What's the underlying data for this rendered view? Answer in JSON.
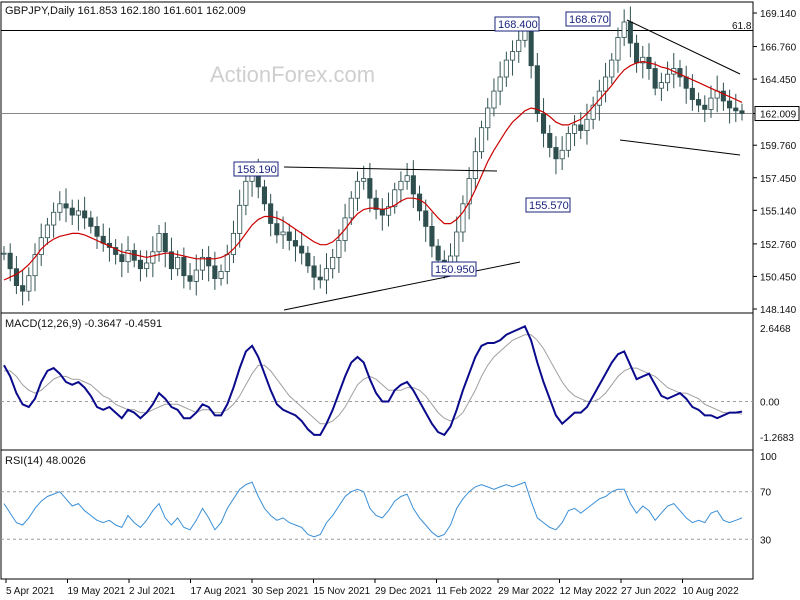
{
  "header": {
    "symbol_line": "GBPJPY,Daily  161.853 162.180 161.601 162.009",
    "macd_label": "MACD(12,26,9) -0.3647 -0.4591",
    "rsi_label": "RSI(14) 48.0026"
  },
  "watermark": "ActionForex.com",
  "colors": {
    "candle": "#2f4f4f",
    "ma": "#cc0000",
    "macd_line": "#0a0a8c",
    "signal": "#a0a0a0",
    "rsi": "#3a8fd6",
    "trendline": "#000000",
    "grid": "#9e9e9e",
    "label_border": "#1a237e"
  },
  "chart_data": [
    {
      "type": "line",
      "title": "GBPJPY,Daily",
      "ohlc_current": {
        "open": 161.853,
        "high": 162.18,
        "low": 161.601,
        "close": 162.009
      },
      "y_ticks": [
        "169.140",
        "166.760",
        "164.450",
        "162.009",
        "159.760",
        "157.450",
        "155.140",
        "152.760",
        "150.450",
        "148.140"
      ],
      "ylim": [
        148.14,
        169.14
      ],
      "x_ticks": [
        "5 Apr 2021",
        "19 May 2021",
        "2 Jul 2021",
        "17 Aug 2021",
        "30 Sep 2021",
        "15 Nov 2021",
        "29 Dec 2021",
        "11 Feb 2022",
        "29 Mar 2022",
        "12 May 2022",
        "27 Jun 2022",
        "10 Aug 2022"
      ],
      "annotations": [
        {
          "text": "168.400",
          "x": "Mar 2022",
          "y": 168.4
        },
        {
          "text": "168.670",
          "x": "May 2022",
          "y": 168.67
        },
        {
          "text": "158.190",
          "x": "Oct 2021",
          "y": 158.19
        },
        {
          "text": "155.570",
          "x": "May 2022",
          "y": 155.57
        },
        {
          "text": "150.950",
          "x": "Feb 2022",
          "y": 150.95
        },
        {
          "text": "61.8",
          "x": "Aug 2022",
          "y": 167.9
        }
      ],
      "horizontal_lines": [
        {
          "y": 167.9,
          "label": "61.8"
        },
        {
          "y": 162.009,
          "label": "162.009"
        }
      ],
      "series": [
        {
          "name": "close",
          "values": [
            152.1,
            151.0,
            149.8,
            149.4,
            150.5,
            152.0,
            153.2,
            154.1,
            155.0,
            155.6,
            155.3,
            154.8,
            155.1,
            154.6,
            154.0,
            153.3,
            152.8,
            152.5,
            152.0,
            151.5,
            152.3,
            151.6,
            151.0,
            151.4,
            152.2,
            153.5,
            152.2,
            151.0,
            151.8,
            150.5,
            150.1,
            150.9,
            151.8,
            151.2,
            150.3,
            150.8,
            152.0,
            153.5,
            155.5,
            157.2,
            157.8,
            156.8,
            155.6,
            154.2,
            153.4,
            153.6,
            153.0,
            152.6,
            152.1,
            151.2,
            150.4,
            150.2,
            151.0,
            151.8,
            153.0,
            154.6,
            156.0,
            157.2,
            157.4,
            156.0,
            155.2,
            154.8,
            155.4,
            156.6,
            157.2,
            157.6,
            156.3,
            155.1,
            154.0,
            152.6,
            151.6,
            151.2,
            151.9,
            153.6,
            155.6,
            157.4,
            159.3,
            161.0,
            162.4,
            163.6,
            164.6,
            165.8,
            166.4,
            167.2,
            168.2,
            165.4,
            162.0,
            160.6,
            159.6,
            158.8,
            159.4,
            160.6,
            161.2,
            160.8,
            161.6,
            162.6,
            163.6,
            164.6,
            165.8,
            167.4,
            168.5,
            167.0,
            165.6,
            166.0,
            165.2,
            163.8,
            164.2,
            164.8,
            165.2,
            164.6,
            163.8,
            163.0,
            162.6,
            162.3,
            163.1,
            163.6,
            162.9,
            162.4,
            162.2,
            162.009
          ]
        },
        {
          "name": "ma",
          "values": [
            150.2,
            150.4,
            150.6,
            150.9,
            151.3,
            151.8,
            152.4,
            152.8,
            153.1,
            153.3,
            153.4,
            153.5,
            153.5,
            153.4,
            153.2,
            153.0,
            152.8,
            152.6,
            152.4,
            152.2,
            152.1,
            152.0,
            151.9,
            151.8,
            151.9,
            152.0,
            152.1,
            152.1,
            152.0,
            151.9,
            151.8,
            151.7,
            151.7,
            151.7,
            151.7,
            151.8,
            152.0,
            152.4,
            152.9,
            153.5,
            154.1,
            154.5,
            154.7,
            154.7,
            154.6,
            154.4,
            154.1,
            153.8,
            153.5,
            153.2,
            152.9,
            152.7,
            152.7,
            152.9,
            153.3,
            153.8,
            154.4,
            154.9,
            155.2,
            155.3,
            155.3,
            155.2,
            155.3,
            155.5,
            155.8,
            156.0,
            156.0,
            155.9,
            155.6,
            155.1,
            154.6,
            154.2,
            154.2,
            154.5,
            155.0,
            155.7,
            156.6,
            157.6,
            158.6,
            159.4,
            160.1,
            160.8,
            161.4,
            161.8,
            162.2,
            162.4,
            162.3,
            162.1,
            161.8,
            161.4,
            161.2,
            161.2,
            161.4,
            161.6,
            162.0,
            162.5,
            163.0,
            163.5,
            164.0,
            164.6,
            165.1,
            165.4,
            165.6,
            165.7,
            165.6,
            165.5,
            165.3,
            165.2,
            165.0,
            164.8,
            164.6,
            164.4,
            164.2,
            164.0,
            163.8,
            163.6,
            163.4,
            163.2,
            163.0,
            162.8
          ]
        }
      ]
    },
    {
      "type": "line",
      "title": "MACD(12,26,9)",
      "y_ticks": [
        "2.6468",
        "0.00",
        "-1.2683"
      ],
      "ylim": [
        -1.6,
        3.0
      ],
      "last": {
        "macd": -0.3647,
        "signal": -0.4591
      },
      "series": [
        {
          "name": "MACD",
          "values": [
            1.3,
            0.9,
            0.3,
            -0.1,
            -0.2,
            0.1,
            0.7,
            1.1,
            1.2,
            1.0,
            0.7,
            0.6,
            0.7,
            0.5,
            0.2,
            -0.2,
            -0.3,
            -0.2,
            -0.4,
            -0.6,
            -0.3,
            -0.4,
            -0.6,
            -0.4,
            -0.1,
            0.3,
            0.1,
            -0.2,
            -0.3,
            -0.6,
            -0.6,
            -0.4,
            -0.1,
            -0.2,
            -0.5,
            -0.5,
            -0.1,
            0.5,
            1.2,
            1.8,
            2.0,
            1.6,
            1.0,
            0.4,
            -0.1,
            -0.3,
            -0.4,
            -0.5,
            -0.7,
            -1.0,
            -1.2,
            -1.2,
            -0.8,
            -0.3,
            0.3,
            0.9,
            1.4,
            1.6,
            1.4,
            0.8,
            0.3,
            0.0,
            0.0,
            0.4,
            0.6,
            0.7,
            0.4,
            0.0,
            -0.4,
            -0.8,
            -1.1,
            -1.2,
            -0.9,
            -0.3,
            0.4,
            1.0,
            1.6,
            2.0,
            2.1,
            2.1,
            2.2,
            2.4,
            2.5,
            2.6,
            2.7,
            2.2,
            1.4,
            0.7,
            0.1,
            -0.5,
            -0.8,
            -0.6,
            -0.4,
            -0.4,
            -0.2,
            0.2,
            0.6,
            1.0,
            1.4,
            1.7,
            1.8,
            1.3,
            0.8,
            0.9,
            1.0,
            0.6,
            0.2,
            0.1,
            0.2,
            0.3,
            0.1,
            -0.2,
            -0.3,
            -0.5,
            -0.5,
            -0.6,
            -0.5,
            -0.4,
            -0.4,
            -0.3647
          ]
        },
        {
          "name": "Signal",
          "values": [
            1.1,
            1.1,
            0.9,
            0.6,
            0.4,
            0.3,
            0.4,
            0.6,
            0.8,
            0.9,
            0.9,
            0.8,
            0.8,
            0.7,
            0.6,
            0.4,
            0.2,
            0.1,
            -0.1,
            -0.2,
            -0.3,
            -0.3,
            -0.4,
            -0.4,
            -0.3,
            -0.2,
            -0.1,
            -0.1,
            -0.1,
            -0.2,
            -0.3,
            -0.4,
            -0.3,
            -0.3,
            -0.4,
            -0.4,
            -0.3,
            -0.1,
            0.2,
            0.6,
            1.0,
            1.3,
            1.3,
            1.1,
            0.8,
            0.5,
            0.2,
            0.0,
            -0.2,
            -0.4,
            -0.6,
            -0.8,
            -0.8,
            -0.7,
            -0.5,
            -0.2,
            0.2,
            0.6,
            0.8,
            0.9,
            0.8,
            0.6,
            0.4,
            0.4,
            0.4,
            0.5,
            0.5,
            0.4,
            0.2,
            -0.1,
            -0.4,
            -0.6,
            -0.7,
            -0.6,
            -0.4,
            0.0,
            0.4,
            0.9,
            1.3,
            1.6,
            1.8,
            2.0,
            2.2,
            2.3,
            2.4,
            2.4,
            2.2,
            1.9,
            1.5,
            1.1,
            0.7,
            0.4,
            0.2,
            0.1,
            0.0,
            0.0,
            0.1,
            0.3,
            0.6,
            0.9,
            1.1,
            1.2,
            1.2,
            1.1,
            1.0,
            0.9,
            0.7,
            0.5,
            0.4,
            0.3,
            0.3,
            0.2,
            0.1,
            -0.1,
            -0.2,
            -0.3,
            -0.4,
            -0.4,
            -0.4,
            -0.4591
          ]
        }
      ]
    },
    {
      "type": "line",
      "title": "RSI(14)",
      "y_ticks": [
        "100",
        "70",
        "30"
      ],
      "ylim": [
        0,
        100
      ],
      "last": 48.0026,
      "series": [
        {
          "name": "RSI",
          "values": [
            60,
            52,
            44,
            42,
            48,
            56,
            62,
            66,
            68,
            70,
            64,
            58,
            60,
            54,
            50,
            46,
            44,
            46,
            42,
            40,
            50,
            44,
            40,
            46,
            54,
            60,
            48,
            42,
            48,
            40,
            38,
            46,
            56,
            48,
            38,
            44,
            56,
            64,
            72,
            76,
            78,
            66,
            56,
            50,
            46,
            48,
            44,
            42,
            40,
            34,
            32,
            34,
            44,
            50,
            58,
            66,
            70,
            72,
            70,
            56,
            50,
            48,
            54,
            62,
            66,
            68,
            56,
            48,
            42,
            36,
            32,
            34,
            42,
            56,
            64,
            70,
            74,
            76,
            74,
            72,
            74,
            76,
            74,
            76,
            78,
            62,
            48,
            44,
            40,
            38,
            44,
            54,
            56,
            52,
            56,
            60,
            64,
            66,
            70,
            72,
            72,
            60,
            52,
            58,
            54,
            46,
            52,
            58,
            60,
            54,
            48,
            44,
            46,
            44,
            52,
            54,
            46,
            44,
            46,
            48.0026
          ]
        }
      ]
    }
  ]
}
